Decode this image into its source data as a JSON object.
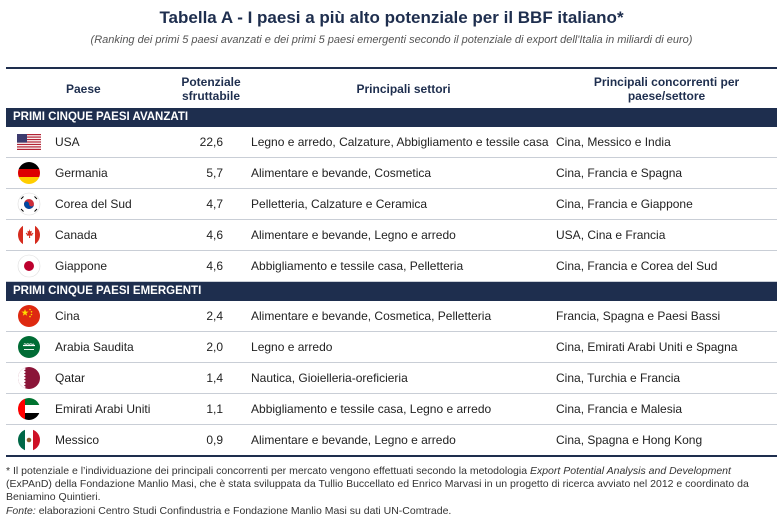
{
  "title": "Tabella A - I paesi a più alto potenziale per il BBF italiano*",
  "subtitle": "(Ranking dei primi 5 paesi avanzati e dei primi 5 paesi emergenti secondo il potenziale di export dell'Italia in miliardi di euro)",
  "headers": {
    "country": "Paese",
    "potential": "Potenziale sfruttabile",
    "sectors": "Principali settori",
    "competitors": "Principali concorrenti per paese/settore"
  },
  "sections": [
    {
      "label": "PRIMI CINQUE PAESI AVANZATI",
      "rows": [
        {
          "flag_icon": "usa-flag-icon",
          "country": "USA",
          "potential": "22,6",
          "sectors": "Legno e arredo, Calzature, Abbigliamento e tessile casa",
          "competitors": "Cina, Messico e India"
        },
        {
          "flag_icon": "germany-flag-icon",
          "country": "Germania",
          "potential": "5,7",
          "sectors": "Alimentare e bevande, Cosmetica",
          "competitors": "Cina, Francia e Spagna"
        },
        {
          "flag_icon": "south-korea-flag-icon",
          "country": "Corea del Sud",
          "potential": "4,7",
          "sectors": "Pelletteria, Calzature e Ceramica",
          "competitors": "Cina, Francia e Giappone"
        },
        {
          "flag_icon": "canada-flag-icon",
          "country": "Canada",
          "potential": "4,6",
          "sectors": "Alimentare e bevande, Legno e arredo",
          "competitors": "USA, Cina e Francia"
        },
        {
          "flag_icon": "japan-flag-icon",
          "country": "Giappone",
          "potential": "4,6",
          "sectors": "Abbigliamento e tessile casa, Pelletteria",
          "competitors": "Cina, Francia e Corea del Sud"
        }
      ]
    },
    {
      "label": "PRIMI CINQUE PAESI EMERGENTI",
      "rows": [
        {
          "flag_icon": "china-flag-icon",
          "country": "Cina",
          "potential": "2,4",
          "sectors": "Alimentare e bevande, Cosmetica, Pelletteria",
          "competitors": "Francia, Spagna e Paesi Bassi"
        },
        {
          "flag_icon": "saudi-arabia-flag-icon",
          "country": "Arabia Saudita",
          "potential": "2,0",
          "sectors": "Legno e arredo",
          "competitors": "Cina, Emirati Arabi Uniti e Spagna"
        },
        {
          "flag_icon": "qatar-flag-icon",
          "country": "Qatar",
          "potential": "1,4",
          "sectors": "Nautica, Gioielleria-oreficieria",
          "competitors": "Cina, Turchia e Francia"
        },
        {
          "flag_icon": "uae-flag-icon",
          "country": "Emirati Arabi Uniti",
          "potential": "1,1",
          "sectors": "Abbigliamento e tessile casa, Legno e arredo",
          "competitors": "Cina, Francia e Malesia"
        },
        {
          "flag_icon": "mexico-flag-icon",
          "country": "Messico",
          "potential": "0,9",
          "sectors": "Alimentare e bevande, Legno e arredo",
          "competitors": "Cina, Spagna e Hong Kong"
        }
      ]
    }
  ],
  "notes": {
    "footnote_a": "* Il potenziale e l’individuazione dei principali concorrenti per mercato vengono effettuati secondo la metodologia ",
    "footnote_italic": "Export Potential Analysis and Development",
    "footnote_b": " (ExPAnD) della Fondazione Manlio Masi, che è stata sviluppata da Tullio Buccellato ed Enrico Marvasi in un progetto di ricerca avviato nel 2012 e coordinato da Beniamino Quintieri.",
    "source_label": "Fonte:",
    "source_text": " elaborazioni Centro Studi Confindustria e Fondazione Manlio Masi su dati UN-Comtrade."
  },
  "colors": {
    "header_navy": "#1e2e4e",
    "row_divider": "#c9ced6"
  }
}
